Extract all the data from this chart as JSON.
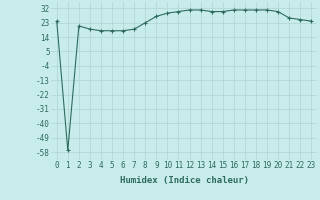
{
  "x": [
    0,
    1,
    2,
    3,
    4,
    5,
    6,
    7,
    8,
    9,
    10,
    11,
    12,
    13,
    14,
    15,
    16,
    17,
    18,
    19,
    20,
    21,
    22,
    23
  ],
  "y": [
    24,
    -57,
    21,
    19,
    18,
    18,
    18,
    19,
    23,
    27,
    29,
    30,
    31,
    31,
    30,
    30,
    31,
    31,
    31,
    31,
    30,
    26,
    25,
    24
  ],
  "line_color": "#2e6b5e",
  "marker": "+",
  "marker_color": "#2e6b5e",
  "bg_color": "#c8ecec",
  "grid_color": "#b0d4d4",
  "xlabel": "Humidex (Indice chaleur)",
  "yticks": [
    -58,
    -49,
    -40,
    -31,
    -22,
    -13,
    -4,
    5,
    14,
    23,
    32
  ],
  "xticks": [
    0,
    1,
    2,
    3,
    4,
    5,
    6,
    7,
    8,
    9,
    10,
    11,
    12,
    13,
    14,
    15,
    16,
    17,
    18,
    19,
    20,
    21,
    22,
    23
  ],
  "ylim": [
    -63,
    36
  ],
  "xlim": [
    -0.5,
    23.5
  ],
  "xlabel_fontsize": 6.5,
  "tick_fontsize": 5.5,
  "label_color": "#2e6b5e"
}
